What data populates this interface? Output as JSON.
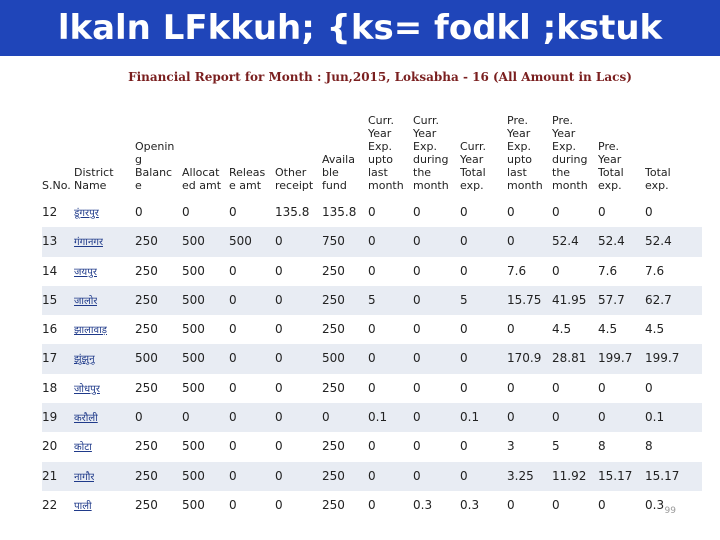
{
  "title": "lkaln LFkkuh; {ks= fodkl ;kstuk",
  "subtitle": "Financial Report for Month : Jun,2015, Loksabha - 16 (All Amount in Lacs)",
  "headers": [
    [
      "S.No."
    ],
    [
      "District",
      "Name"
    ],
    [
      "Openin",
      "g",
      "Balanc",
      "e"
    ],
    [
      "Allocat",
      "ed amt"
    ],
    [
      "Releas",
      "e amt"
    ],
    [
      "Other",
      "receipt"
    ],
    [
      "Availa",
      "ble",
      "fund"
    ],
    [
      "Curr.",
      "Year",
      "Exp.",
      "upto",
      "last",
      "month"
    ],
    [
      "Curr.",
      "Year",
      "Exp.",
      "during",
      "the",
      "month"
    ],
    [
      "Curr.",
      "Year",
      "Total",
      "exp."
    ],
    [
      "Pre.",
      "Year",
      "Exp.",
      "upto",
      "last",
      "month"
    ],
    [
      "Pre.",
      "Year",
      "Exp.",
      "during",
      "the",
      "month"
    ],
    [
      "Pre.",
      "Year",
      "Total",
      "exp."
    ],
    [
      "Total",
      "exp."
    ]
  ],
  "rows": [
    [
      "12",
      "डूंगरपुर",
      "0",
      "0",
      "0",
      "135.8",
      "135.8",
      "0",
      "0",
      "0",
      "0",
      "0",
      "0",
      "0"
    ],
    [
      "13",
      "गंगानगर",
      "250",
      "500",
      "500",
      "0",
      "750",
      "0",
      "0",
      "0",
      "0",
      "52.4",
      "52.4",
      "52.4"
    ],
    [
      "14",
      "जयपुर",
      "250",
      "500",
      "0",
      "0",
      "250",
      "0",
      "0",
      "0",
      "7.6",
      "0",
      "7.6",
      "7.6"
    ],
    [
      "15",
      "जालोर",
      "250",
      "500",
      "0",
      "0",
      "250",
      "5",
      "0",
      "5",
      "15.75",
      "41.95",
      "57.7",
      "62.7"
    ],
    [
      "16",
      "झालावाड़",
      "250",
      "500",
      "0",
      "0",
      "250",
      "0",
      "0",
      "0",
      "0",
      "4.5",
      "4.5",
      "4.5"
    ],
    [
      "17",
      "झुंझुनू",
      "500",
      "500",
      "0",
      "0",
      "500",
      "0",
      "0",
      "0",
      "170.9",
      "28.81",
      "199.7",
      "199.7"
    ],
    [
      "18",
      "जोधपुर",
      "250",
      "500",
      "0",
      "0",
      "250",
      "0",
      "0",
      "0",
      "0",
      "0",
      "0",
      "0"
    ],
    [
      "19",
      "करौली",
      "0",
      "0",
      "0",
      "0",
      "0",
      "0.1",
      "0",
      "0.1",
      "0",
      "0",
      "0",
      "0.1"
    ],
    [
      "20",
      "कोटा",
      "250",
      "500",
      "0",
      "0",
      "250",
      "0",
      "0",
      "0",
      "3",
      "5",
      "8",
      "8"
    ],
    [
      "21",
      "नागौर",
      "250",
      "500",
      "0",
      "0",
      "250",
      "0",
      "0",
      "0",
      "3.25",
      "11.92",
      "15.17",
      "15.17"
    ],
    [
      "22",
      "पाली",
      "250",
      "500",
      "0",
      "0",
      "250",
      "0",
      "0.3",
      "0.3",
      "0",
      "0",
      "0",
      "0.3"
    ]
  ],
  "page_number": "99"
}
